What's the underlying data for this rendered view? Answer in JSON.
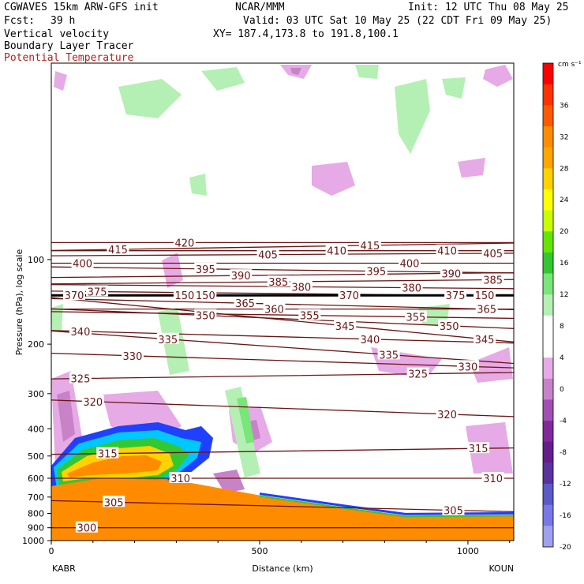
{
  "header": {
    "model": "CGWAVES 15km ARW-GFS init",
    "org": "NCAR/MMM",
    "init": "Init: 12 UTC Thu 08 May 25",
    "fcst_label": "Fcst:",
    "fcst_value": "39 h",
    "valid": "Valid: 03 UTC Sat 10 May 25 (22 CDT Fri 09 May 25)",
    "fields": [
      "Vertical velocity",
      "Boundary Layer Tracer",
      "Potential Temperature"
    ],
    "xy": "XY= 187.4,173.8 to 191.8,100.1"
  },
  "colors": {
    "theta_contour": "#6b1414",
    "theta_label": "#8b1a1a",
    "pbl_fill": "#ff8c00",
    "frame": "#000000"
  },
  "chart_data": {
    "type": "cross-section",
    "xlabel": "Distance (km)",
    "ylabel": "Pressure (hPa), log scale",
    "xlim": [
      0,
      1110
    ],
    "x_ticks": [
      0,
      500,
      1000
    ],
    "left_end_label": "KABR",
    "right_end_label": "KOUN",
    "ylim": [
      1000,
      20
    ],
    "y_scale": "log",
    "y_ticks": [
      100,
      200,
      300,
      400,
      500,
      600,
      700,
      800,
      900,
      1000
    ],
    "colorbar": {
      "unit": "cm s⁻¹",
      "tick_labels": [
        "36",
        "32",
        "28",
        "24",
        "20",
        "16",
        "12",
        "8",
        "4",
        "0",
        "-4",
        "-8",
        "-12",
        "-16",
        "-20"
      ],
      "colors": [
        "#ff0000",
        "#ff3300",
        "#ff5a00",
        "#ff8c00",
        "#ffa500",
        "#ffd200",
        "#ffff00",
        "#c8ff00",
        "#64e600",
        "#32c832",
        "#78e678",
        "#b4f0b4",
        "#ffffff",
        "#ffffff",
        "#e6aae6",
        "#c882c8",
        "#a050b4",
        "#82289b",
        "#641e8c",
        "#5a32a0",
        "#5a5ac8",
        "#7878e6",
        "#a0a0f0"
      ]
    },
    "theta_contours": [
      {
        "value": 300,
        "label_pos": [
          [
            85,
            900
          ]
        ]
      },
      {
        "value": 305,
        "label_pos": [
          [
            150,
            730
          ],
          [
            965,
            780
          ]
        ]
      },
      {
        "value": 310,
        "label_pos": [
          [
            310,
            600
          ],
          [
            1060,
            600
          ]
        ]
      },
      {
        "value": 315,
        "label_pos": [
          [
            135,
            490
          ],
          [
            1025,
            470
          ]
        ]
      },
      {
        "value": 320,
        "label_pos": [
          [
            100,
            320
          ],
          [
            950,
            355
          ]
        ]
      },
      {
        "value": 325,
        "label_pos": [
          [
            70,
            265
          ],
          [
            880,
            255
          ]
        ]
      },
      {
        "value": 330,
        "label_pos": [
          [
            195,
            220
          ],
          [
            1000,
            240
          ]
        ]
      },
      {
        "value": 335,
        "label_pos": [
          [
            280,
            192
          ],
          [
            810,
            218
          ]
        ]
      },
      {
        "value": 340,
        "label_pos": [
          [
            70,
            180
          ],
          [
            765,
            192
          ]
        ]
      },
      {
        "value": 345,
        "label_pos": [
          [
            705,
            172
          ],
          [
            1040,
            192
          ]
        ]
      },
      {
        "value": 350,
        "label_pos": [
          [
            370,
            158
          ],
          [
            955,
            172
          ]
        ]
      },
      {
        "value": 355,
        "label_pos": [
          [
            620,
            158
          ],
          [
            875,
            160
          ]
        ]
      },
      {
        "value": 360,
        "label_pos": [
          [
            535,
            150
          ]
        ]
      },
      {
        "value": 365,
        "label_pos": [
          [
            465,
            143
          ],
          [
            1045,
            150
          ]
        ]
      },
      {
        "value": 370,
        "label_pos": [
          [
            55,
            134
          ],
          [
            715,
            134
          ]
        ]
      },
      {
        "value": 375,
        "label_pos": [
          [
            110,
            130
          ],
          [
            970,
            134
          ]
        ]
      },
      {
        "value": 380,
        "label_pos": [
          [
            600,
            125
          ],
          [
            865,
            126
          ]
        ]
      },
      {
        "value": 385,
        "label_pos": [
          [
            545,
            120
          ],
          [
            1060,
            118
          ]
        ]
      },
      {
        "value": 390,
        "label_pos": [
          [
            455,
            114
          ],
          [
            960,
            112
          ]
        ]
      },
      {
        "value": 395,
        "label_pos": [
          [
            370,
            108
          ],
          [
            780,
            110
          ]
        ]
      },
      {
        "value": 400,
        "label_pos": [
          [
            75,
            103
          ],
          [
            860,
            103
          ]
        ]
      },
      {
        "value": 405,
        "label_pos": [
          [
            520,
            96
          ],
          [
            1060,
            95
          ]
        ]
      },
      {
        "value": 410,
        "label_pos": [
          [
            685,
            93
          ],
          [
            950,
            93
          ]
        ]
      },
      {
        "value": 415,
        "label_pos": [
          [
            160,
            92
          ],
          [
            765,
            89
          ]
        ]
      },
      {
        "value": 420,
        "label_pos": [
          [
            320,
            87
          ]
        ]
      },
      {
        "value": 150,
        "label_pos": [
          [
            320,
            134
          ],
          [
            370,
            134
          ],
          [
            1040,
            134
          ]
        ]
      }
    ],
    "pbl_tracer_top_hPa": [
      {
        "x": 0,
        "p": 640
      },
      {
        "x": 120,
        "p": 600
      },
      {
        "x": 300,
        "p": 610
      },
      {
        "x": 500,
        "p": 690
      },
      {
        "x": 700,
        "p": 760
      },
      {
        "x": 850,
        "p": 815
      },
      {
        "x": 1110,
        "p": 810
      }
    ]
  }
}
